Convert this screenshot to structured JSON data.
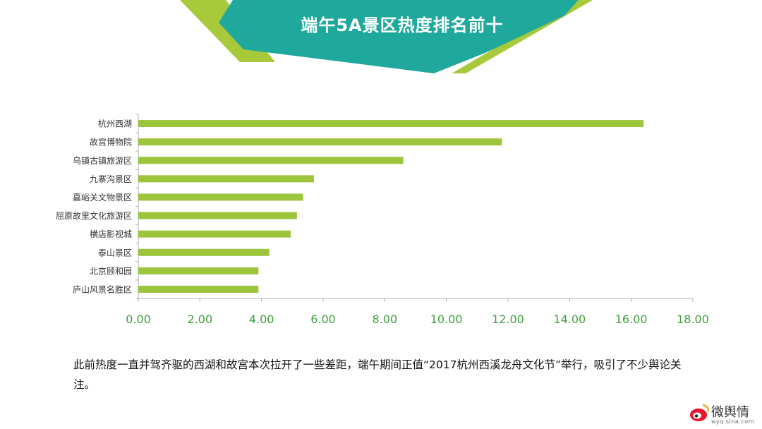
{
  "title": "端午5A景区热度排名前十",
  "colors": {
    "bar": "#9CC43C",
    "tick_text": "#3E9F3E",
    "banner_teal": "#1FA89C",
    "banner_green": "#A7C93A",
    "axis": "#B0B0B0"
  },
  "chart_data": {
    "type": "bar",
    "orientation": "horizontal",
    "title": "",
    "xlabel": "",
    "ylabel": "",
    "categories": [
      "杭州西湖",
      "故宫博物院",
      "乌镇古镇旅游区",
      "九寨沟景区",
      "嘉峪关文物景区",
      "屈原故里文化旅游区",
      "横店影视城",
      "泰山景区",
      "北京颐和园",
      "庐山风景名胜区"
    ],
    "values": [
      16.4,
      11.8,
      8.6,
      5.7,
      5.35,
      5.15,
      4.95,
      4.25,
      3.9,
      3.9
    ],
    "xlim": [
      0,
      18
    ],
    "xticks": [
      "0.00",
      "2.00",
      "4.00",
      "6.00",
      "8.00",
      "10.00",
      "12.00",
      "14.00",
      "16.00",
      "18.00"
    ],
    "grid": false,
    "legend": "none"
  },
  "caption": "此前热度一直并驾齐驱的西湖和故宫本次拉开了一些差距，端午期间正值“2017杭州西溪龙舟文化节”举行，吸引了不少舆论关注。",
  "watermark": {
    "name": "微舆情",
    "url": "wyq.sina.com"
  }
}
